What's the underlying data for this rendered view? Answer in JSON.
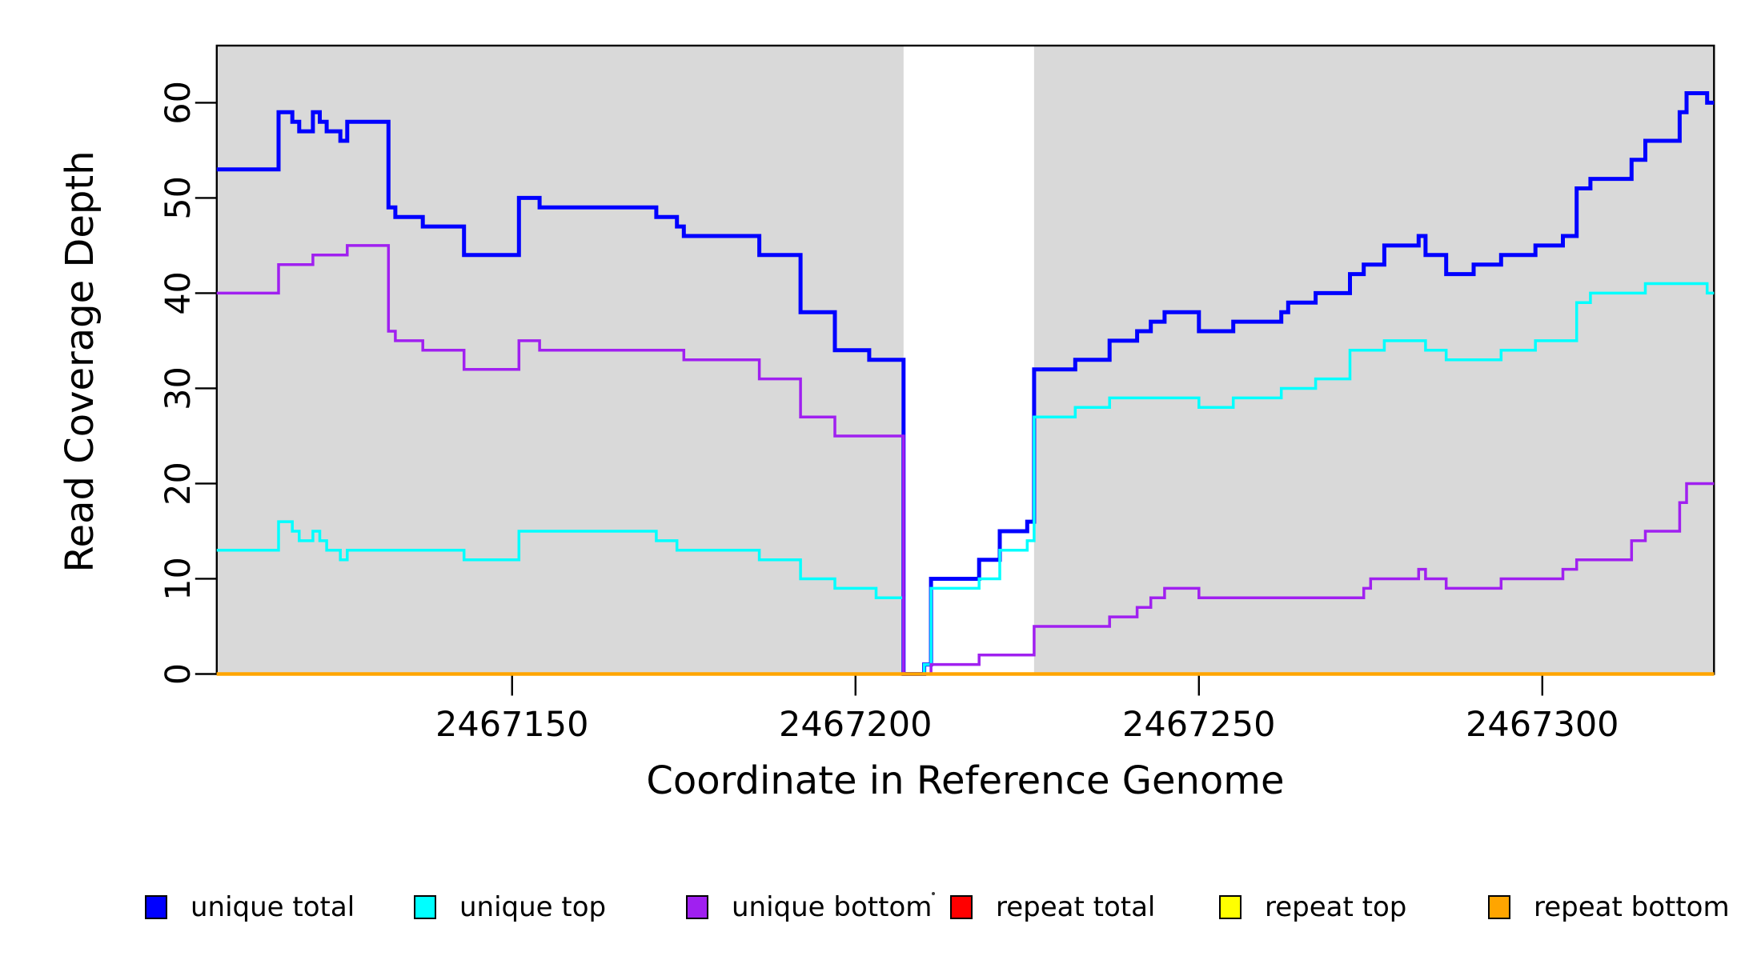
{
  "page": {
    "background": "#FFFFFF"
  },
  "chart_data": {
    "type": "line",
    "subtype": "step-coverage",
    "title": "",
    "xlabel": "Coordinate in Reference Genome",
    "ylabel": "Read Coverage Depth",
    "xlim": [
      2467107,
      2467325
    ],
    "ylim": [
      0,
      66
    ],
    "grid": false,
    "legend_position": "bottom",
    "x_tick_labels": [
      "2467150",
      "2467200",
      "2467250",
      "2467300"
    ],
    "x_tick_values": [
      2467150,
      2467200,
      2467250,
      2467300
    ],
    "y_tick_labels": [
      "0",
      "10",
      "20",
      "30",
      "40",
      "50",
      "60"
    ],
    "y_tick_values": [
      0,
      10,
      20,
      30,
      40,
      50,
      60
    ],
    "shaded_regions": [
      {
        "x0": 2467107,
        "x1": 2467207,
        "color": "#D9D9D9"
      },
      {
        "x0": 2467226,
        "x1": 2467325,
        "color": "#D9D9D9"
      }
    ],
    "series": [
      {
        "name": "unique total",
        "color": "#0000FF",
        "line_width": 5,
        "points": [
          [
            2467107,
            53
          ],
          [
            2467116,
            59
          ],
          [
            2467118,
            58
          ],
          [
            2467119,
            57
          ],
          [
            2467121,
            59
          ],
          [
            2467122,
            58
          ],
          [
            2467123,
            57
          ],
          [
            2467125,
            56
          ],
          [
            2467126,
            58
          ],
          [
            2467132,
            49
          ],
          [
            2467133,
            48
          ],
          [
            2467137,
            47
          ],
          [
            2467143,
            44
          ],
          [
            2467151,
            50
          ],
          [
            2467154,
            49
          ],
          [
            2467171,
            48
          ],
          [
            2467174,
            47
          ],
          [
            2467175,
            46
          ],
          [
            2467186,
            44
          ],
          [
            2467192,
            38
          ],
          [
            2467197,
            34
          ],
          [
            2467202,
            33
          ],
          [
            2467207,
            0
          ],
          [
            2467210,
            1
          ],
          [
            2467211,
            10
          ],
          [
            2467218,
            12
          ],
          [
            2467221,
            15
          ],
          [
            2467225,
            16
          ],
          [
            2467226,
            32
          ],
          [
            2467232,
            33
          ],
          [
            2467237,
            35
          ],
          [
            2467241,
            36
          ],
          [
            2467243,
            37
          ],
          [
            2467245,
            38
          ],
          [
            2467250,
            36
          ],
          [
            2467255,
            37
          ],
          [
            2467262,
            38
          ],
          [
            2467263,
            39
          ],
          [
            2467267,
            40
          ],
          [
            2467272,
            42
          ],
          [
            2467274,
            43
          ],
          [
            2467277,
            45
          ],
          [
            2467282,
            46
          ],
          [
            2467283,
            44
          ],
          [
            2467286,
            42
          ],
          [
            2467290,
            43
          ],
          [
            2467294,
            44
          ],
          [
            2467299,
            45
          ],
          [
            2467303,
            46
          ],
          [
            2467305,
            51
          ],
          [
            2467307,
            52
          ],
          [
            2467313,
            54
          ],
          [
            2467315,
            56
          ],
          [
            2467320,
            59
          ],
          [
            2467321,
            61
          ],
          [
            2467324,
            60
          ]
        ]
      },
      {
        "name": "unique top",
        "color": "#00FFFF",
        "line_width": 3.5,
        "points": [
          [
            2467107,
            13
          ],
          [
            2467116,
            16
          ],
          [
            2467118,
            15
          ],
          [
            2467119,
            14
          ],
          [
            2467121,
            15
          ],
          [
            2467122,
            14
          ],
          [
            2467123,
            13
          ],
          [
            2467125,
            12
          ],
          [
            2467126,
            13
          ],
          [
            2467143,
            12
          ],
          [
            2467151,
            15
          ],
          [
            2467171,
            14
          ],
          [
            2467174,
            13
          ],
          [
            2467186,
            12
          ],
          [
            2467192,
            10
          ],
          [
            2467197,
            9
          ],
          [
            2467203,
            8
          ],
          [
            2467207,
            0
          ],
          [
            2467210,
            1
          ],
          [
            2467211,
            9
          ],
          [
            2467218,
            10
          ],
          [
            2467221,
            13
          ],
          [
            2467225,
            14
          ],
          [
            2467226,
            27
          ],
          [
            2467232,
            28
          ],
          [
            2467237,
            29
          ],
          [
            2467250,
            28
          ],
          [
            2467255,
            29
          ],
          [
            2467262,
            30
          ],
          [
            2467267,
            31
          ],
          [
            2467272,
            34
          ],
          [
            2467277,
            35
          ],
          [
            2467283,
            34
          ],
          [
            2467286,
            33
          ],
          [
            2467294,
            34
          ],
          [
            2467299,
            35
          ],
          [
            2467305,
            39
          ],
          [
            2467307,
            40
          ],
          [
            2467315,
            41
          ],
          [
            2467324,
            40
          ]
        ]
      },
      {
        "name": "unique bottom",
        "color": "#A020F0",
        "line_width": 3.5,
        "points": [
          [
            2467107,
            40
          ],
          [
            2467116,
            43
          ],
          [
            2467121,
            44
          ],
          [
            2467126,
            45
          ],
          [
            2467132,
            36
          ],
          [
            2467133,
            35
          ],
          [
            2467137,
            34
          ],
          [
            2467143,
            32
          ],
          [
            2467151,
            35
          ],
          [
            2467154,
            34
          ],
          [
            2467175,
            33
          ],
          [
            2467186,
            31
          ],
          [
            2467192,
            27
          ],
          [
            2467197,
            25
          ],
          [
            2467207,
            0
          ],
          [
            2467211,
            1
          ],
          [
            2467218,
            2
          ],
          [
            2467226,
            5
          ],
          [
            2467237,
            6
          ],
          [
            2467241,
            7
          ],
          [
            2467243,
            8
          ],
          [
            2467245,
            9
          ],
          [
            2467250,
            8
          ],
          [
            2467274,
            9
          ],
          [
            2467275,
            10
          ],
          [
            2467282,
            11
          ],
          [
            2467283,
            10
          ],
          [
            2467286,
            9
          ],
          [
            2467294,
            10
          ],
          [
            2467303,
            11
          ],
          [
            2467305,
            12
          ],
          [
            2467313,
            14
          ],
          [
            2467315,
            15
          ],
          [
            2467320,
            18
          ],
          [
            2467321,
            20
          ]
        ]
      },
      {
        "name": "repeat total",
        "color": "#FF0000",
        "line_width": 3.5,
        "points": [
          [
            2467107,
            0
          ]
        ]
      },
      {
        "name": "repeat top",
        "color": "#FFFF00",
        "line_width": 3.5,
        "points": [
          [
            2467107,
            0
          ]
        ]
      },
      {
        "name": "repeat bottom",
        "color": "#FFA500",
        "line_width": 4.5,
        "points": [
          [
            2467107,
            0
          ]
        ]
      }
    ]
  }
}
